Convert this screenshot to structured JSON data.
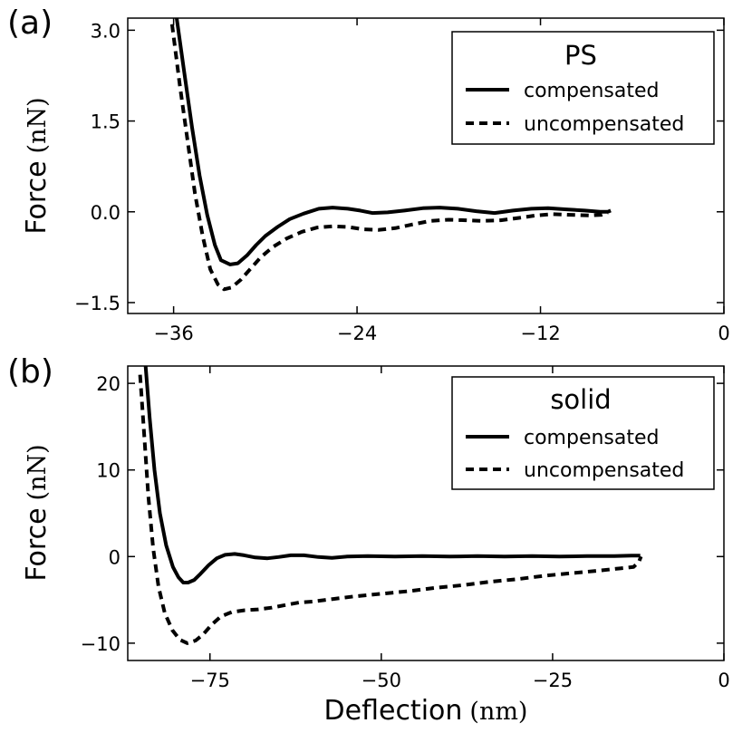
{
  "chart_data": [
    {
      "type": "line",
      "panel_label": "(a)",
      "title": "",
      "xlabel": "",
      "ylabel": "Force",
      "ylabel_unit": "(nN)",
      "xlim": [
        -39,
        0
      ],
      "ylim": [
        -1.68,
        3.2
      ],
      "x_ticks": [
        -36,
        -24,
        -12,
        0
      ],
      "x_tick_labels": [
        "−36",
        "−24",
        "−12",
        "0"
      ],
      "y_ticks": [
        3.0,
        1.5,
        0.0,
        -1.5
      ],
      "y_tick_labels": [
        "3.0",
        "1.5",
        "0.0",
        "−1.5"
      ],
      "legend": {
        "title": "PS",
        "location": "top-right"
      },
      "series": [
        {
          "name": "compensated",
          "style": "solid",
          "x": [
            -35.8,
            -35.3,
            -34.8,
            -34.3,
            -33.8,
            -33.3,
            -32.9,
            -32.3,
            -31.8,
            -31.2,
            -30.6,
            -30.0,
            -29.2,
            -28.4,
            -27.5,
            -26.5,
            -25.6,
            -24.6,
            -23.8,
            -23.0,
            -22.0,
            -20.9,
            -19.7,
            -18.6,
            -17.4,
            -16.2,
            -15.0,
            -13.8,
            -12.6,
            -11.5,
            -10.3,
            -9.1,
            -8.1,
            -7.6,
            -7.4
          ],
          "y": [
            3.2,
            2.3,
            1.4,
            0.6,
            -0.05,
            -0.55,
            -0.8,
            -0.87,
            -0.85,
            -0.72,
            -0.55,
            -0.4,
            -0.25,
            -0.12,
            -0.03,
            0.05,
            0.07,
            0.05,
            0.02,
            -0.02,
            -0.01,
            0.02,
            0.06,
            0.07,
            0.05,
            0.01,
            -0.02,
            0.02,
            0.05,
            0.06,
            0.04,
            0.02,
            0.0,
            0.0,
            0.02
          ]
        },
        {
          "name": "uncompensated",
          "style": "dashed",
          "x": [
            -36.1,
            -35.6,
            -35.1,
            -34.6,
            -34.1,
            -33.6,
            -33.1,
            -32.7,
            -32.2,
            -31.6,
            -31.0,
            -30.3,
            -29.5,
            -28.6,
            -27.6,
            -26.6,
            -25.6,
            -24.6,
            -23.6,
            -22.6,
            -21.5,
            -20.4,
            -19.2,
            -18.0,
            -16.9,
            -15.8,
            -14.6,
            -13.4,
            -12.3,
            -11.2,
            -10.0,
            -8.8,
            -8.0,
            -7.6
          ],
          "y": [
            3.1,
            2.1,
            1.2,
            0.3,
            -0.4,
            -0.95,
            -1.2,
            -1.28,
            -1.25,
            -1.12,
            -0.95,
            -0.75,
            -0.58,
            -0.44,
            -0.33,
            -0.26,
            -0.24,
            -0.25,
            -0.29,
            -0.3,
            -0.27,
            -0.21,
            -0.15,
            -0.13,
            -0.14,
            -0.15,
            -0.14,
            -0.1,
            -0.06,
            -0.04,
            -0.05,
            -0.06,
            -0.05,
            -0.02
          ]
        }
      ]
    },
    {
      "type": "line",
      "panel_label": "(b)",
      "title": "",
      "xlabel": "Deflection",
      "xlabel_unit": "(nm)",
      "ylabel": "Force",
      "ylabel_unit": "(nN)",
      "xlim": [
        -87,
        0
      ],
      "ylim": [
        -12,
        22
      ],
      "x_ticks": [
        -75,
        -50,
        -25,
        0
      ],
      "x_tick_labels": [
        "−75",
        "−50",
        "−25",
        "0"
      ],
      "y_ticks": [
        20,
        10,
        0,
        -10
      ],
      "y_tick_labels": [
        "20",
        "10",
        "0",
        "−10"
      ],
      "legend": {
        "title": "solid",
        "location": "top-right"
      },
      "series": [
        {
          "name": "compensated",
          "style": "solid",
          "x": [
            -84.4,
            -83.8,
            -83.1,
            -82.3,
            -81.4,
            -80.4,
            -79.6,
            -78.9,
            -78.2,
            -77.3,
            -76.4,
            -75.2,
            -74.0,
            -72.8,
            -71.4,
            -70.0,
            -68.4,
            -66.6,
            -65.0,
            -63.2,
            -61.3,
            -59.2,
            -57.2,
            -55.0,
            -52.0,
            -48.0,
            -44.0,
            -40.0,
            -36.0,
            -32.0,
            -28.0,
            -24.0,
            -20.0,
            -16.0,
            -13.5,
            -12.2
          ],
          "y": [
            22,
            16,
            10,
            5,
            1.3,
            -1.2,
            -2.4,
            -3.0,
            -3.0,
            -2.7,
            -2.0,
            -1.0,
            -0.2,
            0.2,
            0.3,
            0.15,
            -0.1,
            -0.2,
            -0.05,
            0.15,
            0.15,
            -0.05,
            -0.15,
            0.0,
            0.05,
            0.0,
            0.05,
            0.0,
            0.05,
            0.0,
            0.05,
            0.0,
            0.05,
            0.05,
            0.1,
            0.1
          ]
        },
        {
          "name": "uncompensated",
          "style": "dashed",
          "x": [
            -85.2,
            -84.6,
            -84.0,
            -83.3,
            -82.5,
            -81.6,
            -80.5,
            -79.4,
            -78.3,
            -77.1,
            -76.0,
            -74.8,
            -73.4,
            -71.8,
            -70.0,
            -68.0,
            -66.0,
            -64.0,
            -62.0,
            -60.0,
            -57.0,
            -54.0,
            -50.0,
            -46.0,
            -42.0,
            -38.0,
            -34.0,
            -30.0,
            -26.0,
            -22.0,
            -18.0,
            -15.0,
            -13.2,
            -12.4,
            -12.1
          ],
          "y": [
            21,
            14,
            7,
            1,
            -3.5,
            -6.5,
            -8.5,
            -9.6,
            -10.0,
            -9.7,
            -9.0,
            -7.9,
            -6.9,
            -6.4,
            -6.2,
            -6.1,
            -5.9,
            -5.6,
            -5.3,
            -5.2,
            -4.9,
            -4.6,
            -4.3,
            -4.0,
            -3.6,
            -3.3,
            -2.9,
            -2.6,
            -2.2,
            -1.9,
            -1.6,
            -1.35,
            -1.2,
            -0.6,
            0.0
          ]
        }
      ]
    }
  ]
}
